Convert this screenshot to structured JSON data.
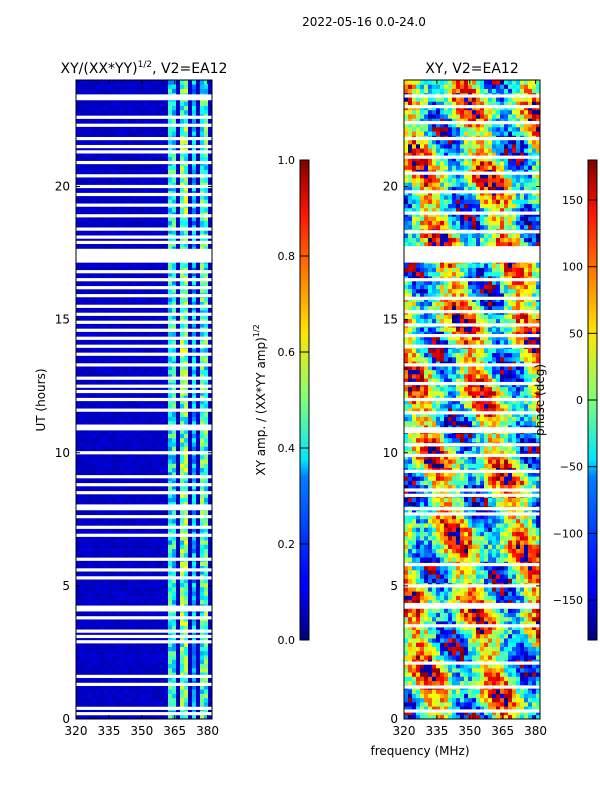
{
  "figure": {
    "suptitle": "2022-05-16 0.0-24.0"
  },
  "chart_data": [
    {
      "type": "heatmap",
      "title": "XY/(XX*YY)",
      "title_sup": "1/2",
      "title_suffix": ", V2=EA12",
      "xlabel": "",
      "ylabel": "UT (hours)",
      "xlim": [
        320,
        382
      ],
      "ylim": [
        0,
        24
      ],
      "xticks": [
        320,
        335,
        350,
        365,
        380
      ],
      "yticks": [
        0,
        5,
        10,
        15,
        20
      ],
      "colormap": "jet",
      "value_range": [
        0,
        1
      ],
      "background_value": 0.05,
      "bright_channel_bands_MHz": [
        [
          362,
          366,
          0.45
        ],
        [
          367,
          371,
          0.55
        ],
        [
          372,
          375,
          0.35
        ],
        [
          377,
          381,
          0.5
        ]
      ],
      "gap_rows_hours": [
        0.2,
        0.4,
        1.3,
        1.6,
        2.9,
        3.1,
        3.3,
        3.8,
        4.1,
        4.2,
        5.3,
        5.6,
        6.0,
        6.9,
        7.2,
        7.6,
        7.9,
        8.0,
        8.5,
        8.8,
        9.1,
        10.0,
        10.9,
        11.0,
        11.6,
        12.0,
        12.3,
        12.5,
        12.8,
        13.3,
        13.7,
        14.0,
        14.3,
        14.6,
        14.9,
        15.2,
        15.5,
        15.9,
        16.2,
        16.5,
        16.8,
        17.2,
        17.3,
        17.4,
        17.5,
        17.6,
        17.9,
        18.1,
        18.4,
        18.9,
        19.3,
        19.7,
        20.0,
        20.4,
        20.9,
        21.3,
        21.5,
        21.8,
        22.3,
        22.6,
        23.3,
        23.4
      ]
    },
    {
      "type": "heatmap",
      "title": "XY, V2=EA12",
      "xlabel": "frequency (MHz)",
      "ylabel": "",
      "xlim": [
        320,
        382
      ],
      "ylim": [
        0,
        24
      ],
      "xticks": [
        320,
        335,
        350,
        365,
        380
      ],
      "yticks": [
        0,
        5,
        10,
        15,
        20
      ],
      "colormap": "jet",
      "value_range": [
        -180,
        180
      ],
      "gap_rows_hours": [
        0.3,
        1.2,
        2.1,
        3.5,
        4.2,
        4.3,
        5.0,
        5.8,
        7.7,
        7.9,
        8.4,
        8.6,
        9.3,
        9.9,
        10.3,
        10.8,
        10.9,
        11.5,
        12.0,
        12.6,
        13.3,
        14.0,
        14.4,
        14.8,
        15.3,
        15.8,
        16.5,
        17.2,
        17.3,
        17.4,
        17.5,
        17.6,
        17.7,
        18.3,
        19.0,
        19.8,
        20.5,
        21.1,
        21.8,
        22.4,
        23.0,
        23.4
      ]
    }
  ],
  "colorbars": [
    {
      "label": "XY amp. / (XX*YY amp)",
      "label_sup": "1/2",
      "min": 0,
      "max": 1,
      "ticks": [
        "0.0",
        "0.2",
        "0.4",
        "0.6",
        "0.8",
        "1.0"
      ],
      "colormap": "jet"
    },
    {
      "label": "phase (deg)",
      "min": -180,
      "max": 180,
      "ticks": [
        "-150",
        "-100",
        "-50",
        "0",
        "50",
        "100",
        "150"
      ],
      "tick_values": [
        -150,
        -100,
        -50,
        0,
        50,
        100,
        150
      ],
      "colormap": "jet"
    }
  ]
}
